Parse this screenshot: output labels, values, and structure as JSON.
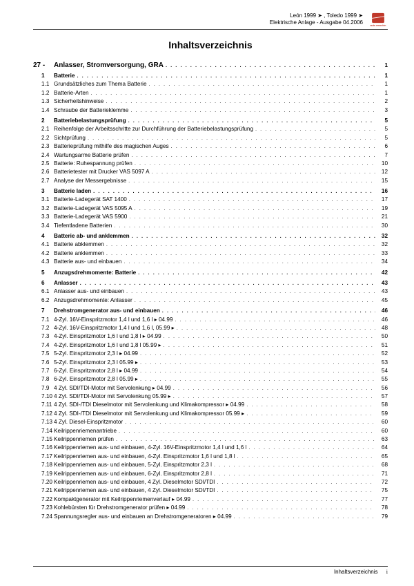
{
  "header": {
    "line1": "León 1999 ➤ , Toledo 1999 ➤",
    "line2": "Elektrische Anlage - Ausgabe 04.2006",
    "logo_brand": "SEAT",
    "logo_tagline": "auto emoción",
    "logo_color": "#c0392b"
  },
  "title": "Inhaltsverzeichnis",
  "chapter": {
    "num": "27 -",
    "label": "Anlasser, Stromversorgung, GRA",
    "page": "1"
  },
  "entries": [
    {
      "n": "1",
      "t": "Batterie",
      "p": "1",
      "b": true
    },
    {
      "n": "1.1",
      "t": "Grundsätzliches zum Thema Batterie",
      "p": "1"
    },
    {
      "n": "1.2",
      "t": "Batterie-Arten",
      "p": "1"
    },
    {
      "n": "1.3",
      "t": "Sicherheitshinweise",
      "p": "2"
    },
    {
      "n": "1.4",
      "t": "Schraube der Batterieklemme",
      "p": "3"
    },
    {
      "gap": true
    },
    {
      "n": "2",
      "t": "Batteriebelastungsprüfung",
      "p": "5",
      "b": true
    },
    {
      "n": "2.1",
      "t": "Reihenfolge der Arbeitsschritte zur Durchführung der Batteriebelastungsprüfung",
      "p": "5"
    },
    {
      "n": "2.2",
      "t": "Sichtprüfung",
      "p": "5"
    },
    {
      "n": "2.3",
      "t": "Batterieprüfung mithilfe des magischen Auges",
      "p": "6"
    },
    {
      "n": "2.4",
      "t": "Wartungsarme Batterie prüfen",
      "p": "7"
    },
    {
      "n": "2.5",
      "t": "Batterie: Ruhespannung prüfen",
      "p": "10"
    },
    {
      "n": "2.6",
      "t": "Batterietester mit Drucker VAS 5097 A",
      "p": "12"
    },
    {
      "n": "2.7",
      "t": "Analyse der Messergebnisse",
      "p": "15"
    },
    {
      "gap": true
    },
    {
      "n": "3",
      "t": "Batterie laden",
      "p": "16",
      "b": true
    },
    {
      "n": "3.1",
      "t": "Batterie-Ladegerät SAT 1400",
      "p": "17"
    },
    {
      "n": "3.2",
      "t": "Batterie-Ladegerät VAS 5095 A",
      "p": "19"
    },
    {
      "n": "3.3",
      "t": "Batterie-Ladegerät VAS 5900",
      "p": "21"
    },
    {
      "n": "3.4",
      "t": "Tiefentladene Batterien",
      "p": "30"
    },
    {
      "gap": true
    },
    {
      "n": "4",
      "t": "Batterie ab- und anklemmen",
      "p": "32",
      "b": true
    },
    {
      "n": "4.1",
      "t": "Batterie abklemmen",
      "p": "32"
    },
    {
      "n": "4.2",
      "t": "Batterie anklemmen",
      "p": "33"
    },
    {
      "n": "4.3",
      "t": "Batterie aus- und einbauen",
      "p": "34"
    },
    {
      "gap": true
    },
    {
      "n": "5",
      "t": "Anzugsdrehmomente: Batterie",
      "p": "42",
      "b": true
    },
    {
      "gap": true
    },
    {
      "n": "6",
      "t": "Anlasser",
      "p": "43",
      "b": true
    },
    {
      "n": "6.1",
      "t": "Anlasser aus- und einbauen",
      "p": "43"
    },
    {
      "n": "6.2",
      "t": "Anzugsdrehmomente: Anlasser",
      "p": "45"
    },
    {
      "gap": true
    },
    {
      "n": "7",
      "t": "Drehstromgenerator aus- und einbauen",
      "p": "46",
      "b": true
    },
    {
      "n": "7.1",
      "t": "4-Zyl. 16V-Einspritzmotor 1,4 l und 1,6 l ▸ 04.99",
      "p": "46"
    },
    {
      "n": "7.2",
      "t": "4-Zyl. 16V-Einspritzmotor 1,4 l und 1,6 l, 05.99 ▸",
      "p": "48"
    },
    {
      "n": "7.3",
      "t": "4-Zyl. Einspritzmotor 1,6 l und 1,8 l ▸ 04.99",
      "p": "50"
    },
    {
      "n": "7.4",
      "t": "4-Zyl. Einspritzmotor 1,6 l und 1,8 l 05.99 ▸",
      "p": "51"
    },
    {
      "n": "7.5",
      "t": "5-Zyl. Einspritzmotor 2,3 l ▸ 04.99",
      "p": "52"
    },
    {
      "n": "7.6",
      "t": "5-Zyl. Einspritzmotor 2,3 l 05.99 ▸",
      "p": "53"
    },
    {
      "n": "7.7",
      "t": "6-Zyl. Einspritzmotor 2,8 l ▸ 04.99",
      "p": "54"
    },
    {
      "n": "7.8",
      "t": "6-Zyl. Einspritzmotor 2,8 l 05.99 ▸",
      "p": "55"
    },
    {
      "n": "7.9",
      "t": "4 Zyl. SDI/TDI-Motor mit Servolenkung ▸ 04.99",
      "p": "56"
    },
    {
      "n": "7.10",
      "t": "4 Zyl. SDI/TDI-Motor mit Servolenkung 05.99 ▸",
      "p": "57"
    },
    {
      "n": "7.11",
      "t": "4 Zyl. SDI-/TDI Dieselmotor mit Servolenkung und Klimakompressor ▸ 04.99",
      "p": "58"
    },
    {
      "n": "7.12",
      "t": "4 Zyl. SDI-/TDI Dieselmotor mit Servolenkung und Klimakompressor 05.99 ▸",
      "p": "59"
    },
    {
      "n": "7.13",
      "t": "4 Zyl. Diesel-Einspritzmotor",
      "p": "60"
    },
    {
      "n": "7.14",
      "t": "Keilrippenriemenantriebe",
      "p": "60"
    },
    {
      "n": "7.15",
      "t": "Keilrippenriemen prüfen",
      "p": "63"
    },
    {
      "n": "7.16",
      "t": "Keilrippenriemen aus- und einbauen, 4-Zyl. 16V-Einspritzmotor 1,4 l und 1,6 l",
      "p": "64"
    },
    {
      "n": "7.17",
      "t": "Keilrippenriemen aus- und einbauen, 4-Zyl. Einspritzmotor 1,6 l und 1,8 l",
      "p": "65"
    },
    {
      "n": "7.18",
      "t": "Keilrippenriemen aus- und einbauen, 5-Zyl. Einspritzmotor 2,3 l",
      "p": "68"
    },
    {
      "n": "7.19",
      "t": "Keilrippenriemen aus- und einbauen, 6-Zyl. Einspritzmotor 2,8 l",
      "p": "71"
    },
    {
      "n": "7.20",
      "t": "Keilrippenriemen aus- und einbauen, 4 Zyl. Dieselmotor SDI/TDI",
      "p": "72"
    },
    {
      "n": "7.21",
      "t": "Keilrippenriemen aus- und einbauen, 4 Zyl. Dieselmotor SDI/TDI",
      "p": "75"
    },
    {
      "n": "7.22",
      "t": "Kompaktgenerator mit Keilrippenriemenverlauf ▸ 04.99",
      "p": "77"
    },
    {
      "n": "7.23",
      "t": "Kohlebürsten für Drehstromgenerator prüfen ▸ 04.99",
      "p": "78"
    },
    {
      "n": "7.24",
      "t": "Spannungsregler aus- und einbauen an Drehstromgeneratoren ▸ 04.99",
      "p": "79"
    }
  ],
  "footer": {
    "label": "Inhaltsverzeichnis",
    "page_roman": "i"
  }
}
